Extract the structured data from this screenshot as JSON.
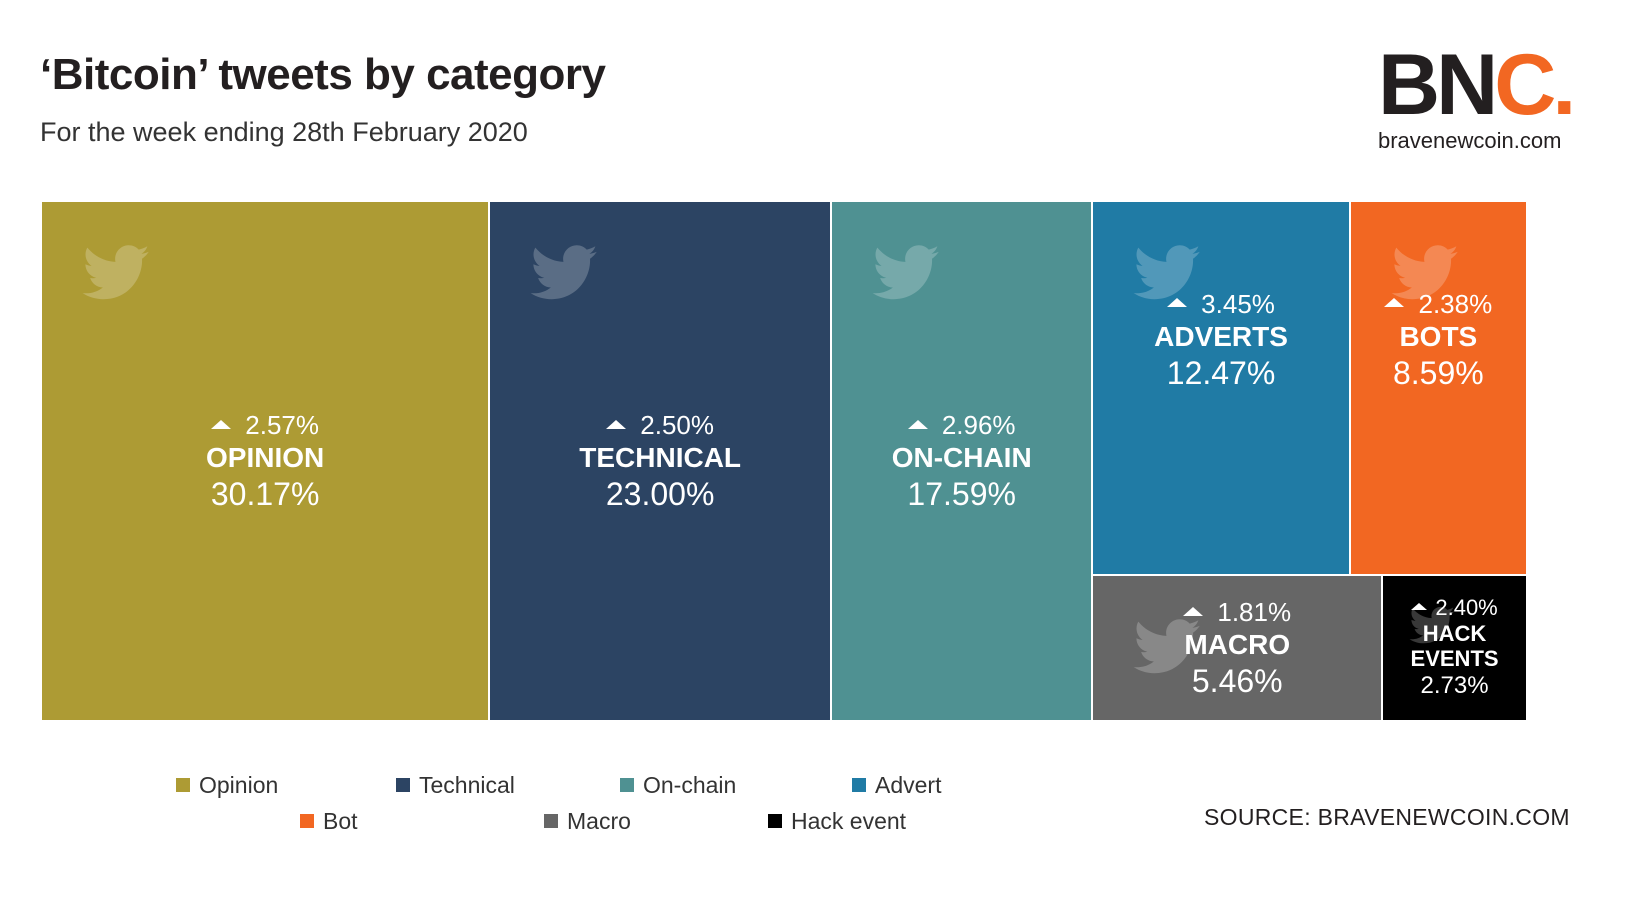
{
  "title": "‘Bitcoin’ tweets by category",
  "subtitle": "For the week ending 28th February 2020",
  "logo": {
    "letters_main": "BN",
    "letters_accent": "C.",
    "url": "bravenewcoin.com"
  },
  "source": "SOURCE: BRAVENEWCOIN.COM",
  "colors": {
    "opinion": "#ad9b34",
    "technical": "#2c4463",
    "on_chain": "#4f9192",
    "advert": "#207ba5",
    "bot": "#f26722",
    "macro": "#666666",
    "hack": "#000000",
    "accent": "#f26722"
  },
  "icons": {
    "tile_icon": "twitter-bird-icon",
    "change_icon": "triangle-up-icon"
  },
  "chart_data": {
    "type": "treemap",
    "title": "‘Bitcoin’ tweets by category",
    "subtitle": "For the week ending 28th February 2020",
    "unit": "%",
    "items": [
      {
        "key": "opinion",
        "name": "OPINION",
        "value": 30.17,
        "value_label": "30.17%",
        "change": 2.57,
        "change_label": "2.57%",
        "direction": "up",
        "color": "#ad9b34"
      },
      {
        "key": "technical",
        "name": "TECHNICAL",
        "value": 23.0,
        "value_label": "23.00%",
        "change": 2.5,
        "change_label": "2.50%",
        "direction": "up",
        "color": "#2c4463"
      },
      {
        "key": "on_chain",
        "name": "ON-CHAIN",
        "value": 17.59,
        "value_label": "17.59%",
        "change": 2.96,
        "change_label": "2.96%",
        "direction": "up",
        "color": "#4f9192"
      },
      {
        "key": "advert",
        "name": "ADVERTS",
        "value": 12.47,
        "value_label": "12.47%",
        "change": 3.45,
        "change_label": "3.45%",
        "direction": "up",
        "color": "#207ba5"
      },
      {
        "key": "bot",
        "name": "BOTS",
        "value": 8.59,
        "value_label": "8.59%",
        "change": 2.38,
        "change_label": "2.38%",
        "direction": "up",
        "color": "#f26722"
      },
      {
        "key": "macro",
        "name": "MACRO",
        "value": 5.46,
        "value_label": "5.46%",
        "change": 1.81,
        "change_label": "1.81%",
        "direction": "up",
        "color": "#666666"
      },
      {
        "key": "hack",
        "name": "HACK EVENTS",
        "value": 2.73,
        "value_label": "2.73%",
        "change": 2.4,
        "change_label": "2.40%",
        "direction": "up",
        "color": "#000000"
      }
    ],
    "legend": [
      {
        "label": "Opinion",
        "color": "#ad9b34"
      },
      {
        "label": "Technical",
        "color": "#2c4463"
      },
      {
        "label": "On-chain",
        "color": "#4f9192"
      },
      {
        "label": "Advert",
        "color": "#207ba5"
      },
      {
        "label": "Bot",
        "color": "#f26722"
      },
      {
        "label": "Macro",
        "color": "#666666"
      },
      {
        "label": "Hack event",
        "color": "#000000"
      }
    ],
    "legend_position": "bottom"
  }
}
